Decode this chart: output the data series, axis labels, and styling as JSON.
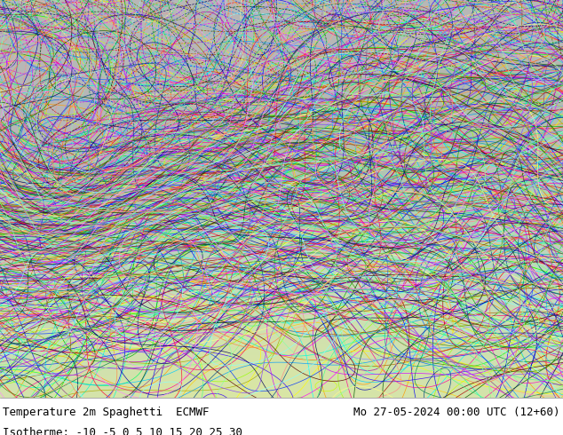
{
  "title_left": "Temperature 2m Spaghetti  ECMWF",
  "title_right": "Mo 27-05-2024 00:00 UTC (12+60)",
  "subtitle": "Isotherme: -10 -5 0 5 10 15 20 25 30",
  "figsize": [
    6.34,
    4.9
  ],
  "dpi": 100,
  "text_color": "#000000",
  "title_fontsize": 9,
  "subtitle_fontsize": 9,
  "land_color": "#c8c8c8",
  "ocean_color": "#d8eeff",
  "warm_land_color": "#c8e8c0",
  "n_members": 51,
  "seed": 12345,
  "isotherms": [
    -10,
    -5,
    0,
    5,
    10,
    15,
    20,
    25,
    30
  ],
  "member_colors": [
    "#ff0000",
    "#ff6600",
    "#ff9900",
    "#ffcc00",
    "#ffff00",
    "#ccff00",
    "#99ff00",
    "#00ff00",
    "#00ff66",
    "#00ffcc",
    "#00ffff",
    "#00ccff",
    "#0099ff",
    "#0066ff",
    "#0033ff",
    "#0000ff",
    "#3300ff",
    "#6600ff",
    "#9900ff",
    "#cc00ff",
    "#ff00ff",
    "#ff00cc",
    "#ff0099",
    "#ff0066",
    "#ff0033",
    "#aa0000",
    "#aa6600",
    "#aaaa00",
    "#00aa00",
    "#00aaaa",
    "#0000aa",
    "#aa00aa",
    "#550000",
    "#005500",
    "#000055",
    "#884400",
    "#008844",
    "#004488",
    "#448800",
    "#884488",
    "#ff8888",
    "#88ff88",
    "#8888ff",
    "#ffff88",
    "#ff88ff",
    "#88ffff",
    "#ff8844",
    "#44ff88",
    "#8844ff",
    "#ffaa88",
    "#88ffaa"
  ]
}
